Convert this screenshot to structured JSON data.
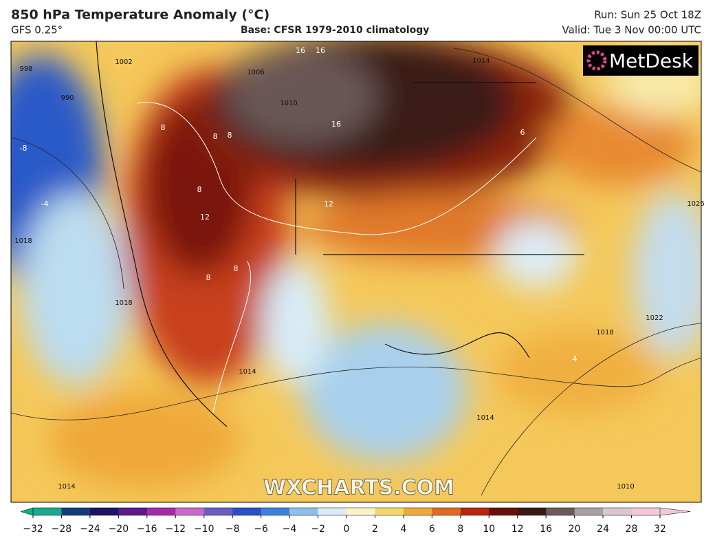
{
  "header": {
    "title": "850 hPa Temperature Anomaly (°C)",
    "model": "GFS 0.25°",
    "base": "Base: CFSR 1979-2010 climatology",
    "run": "Run: Sun 25 Oct 18Z",
    "valid": "Valid: Tue 3 Nov 00:00 UTC"
  },
  "logo": "MetDesk",
  "watermark": "WXCHARTS.COM",
  "isobar_labels": [
    998,
    990,
    1002,
    1006,
    1010,
    1014,
    1018,
    1018,
    1014,
    1022,
    1018,
    1026,
    1014,
    1010,
    1014
  ],
  "isotherm_labels": [
    16,
    16,
    16,
    12,
    12,
    8,
    8,
    8,
    8,
    8,
    8,
    6,
    -8,
    -4,
    4
  ],
  "colorbar": {
    "ticks": [
      {
        "value": -32,
        "label": "−32"
      },
      {
        "value": -28,
        "label": "−28"
      },
      {
        "value": -24,
        "label": "−24"
      },
      {
        "value": -20,
        "label": "−20"
      },
      {
        "value": -16,
        "label": "−16"
      },
      {
        "value": -12,
        "label": "−12"
      },
      {
        "value": -10,
        "label": "−10"
      },
      {
        "value": -8,
        "label": "−8"
      },
      {
        "value": -6,
        "label": "−6"
      },
      {
        "value": -4,
        "label": "−4"
      },
      {
        "value": -2,
        "label": "−2"
      },
      0,
      2,
      4,
      6,
      8,
      10,
      12,
      16,
      20,
      24,
      28,
      32
    ],
    "colors": [
      "#1aa98c",
      "#123c7a",
      "#1b1464",
      "#5a1a8c",
      "#a62aa8",
      "#c868c8",
      "#6a5cc4",
      "#2c4fc8",
      "#3b82dc",
      "#8cc0ec",
      "#dcecf6",
      "#fbf3c8",
      "#f6d86a",
      "#f0a838",
      "#e06a1e",
      "#b82410",
      "#6a1008",
      "#3c1814",
      "#6a5a5a",
      "#a8a0a0",
      "#d8c8cc",
      "#f0c8d8"
    ]
  }
}
